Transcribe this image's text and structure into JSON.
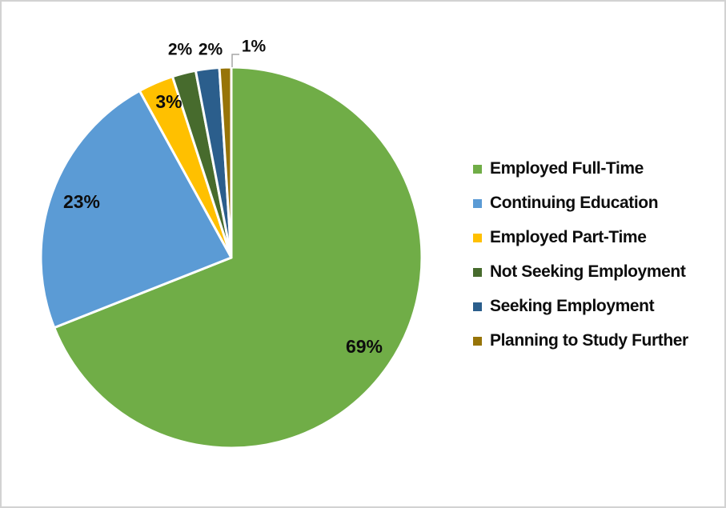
{
  "chart_data": {
    "type": "pie",
    "title": "",
    "legend_position": "right",
    "start_angle_deg": 0,
    "direction": "clockwise",
    "separator_color": "#ffffff",
    "leader_line_color": "#a6a6a6",
    "label_color": "#0d0d0d",
    "slices": [
      {
        "label": "Employed Full-Time",
        "value": 69,
        "pct_label": "69%",
        "color": "#70AD47",
        "label_placement": "inside"
      },
      {
        "label": "Continuing Education",
        "value": 23,
        "pct_label": "23%",
        "color": "#5B9BD5",
        "label_placement": "inside"
      },
      {
        "label": "Employed Part-Time",
        "value": 3,
        "pct_label": "3%",
        "color": "#FFC000",
        "label_placement": "inside"
      },
      {
        "label": "Not Seeking Employment",
        "value": 2,
        "pct_label": "2%",
        "color": "#476B2D",
        "label_placement": "outside"
      },
      {
        "label": "Seeking Employment",
        "value": 2,
        "pct_label": "2%",
        "color": "#2B5E8C",
        "label_placement": "outside"
      },
      {
        "label": "Planning to Study Further",
        "value": 1,
        "pct_label": "1%",
        "color": "#977408",
        "label_placement": "outside-leader"
      }
    ]
  }
}
